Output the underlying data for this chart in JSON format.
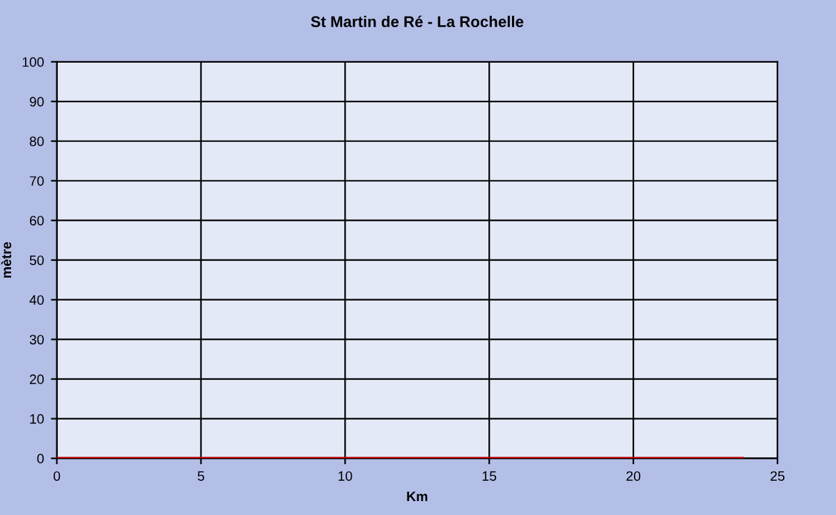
{
  "chart_data": {
    "type": "line",
    "title": "St Martin de Ré - La Rochelle",
    "xlabel": "Km",
    "ylabel": "mètre",
    "x": [
      0,
      23.8
    ],
    "series": [
      {
        "color": "#c00000",
        "values": [
          0,
          0
        ]
      }
    ],
    "xlim": [
      0,
      25
    ],
    "xticks": [
      0,
      5,
      10,
      15,
      20,
      25
    ],
    "ylim": [
      0,
      100
    ],
    "yticks": [
      0,
      10,
      20,
      30,
      40,
      50,
      60,
      70,
      80,
      90,
      100
    ],
    "grid": true,
    "marker": "none",
    "line_style": "solid",
    "legend": false
  }
}
